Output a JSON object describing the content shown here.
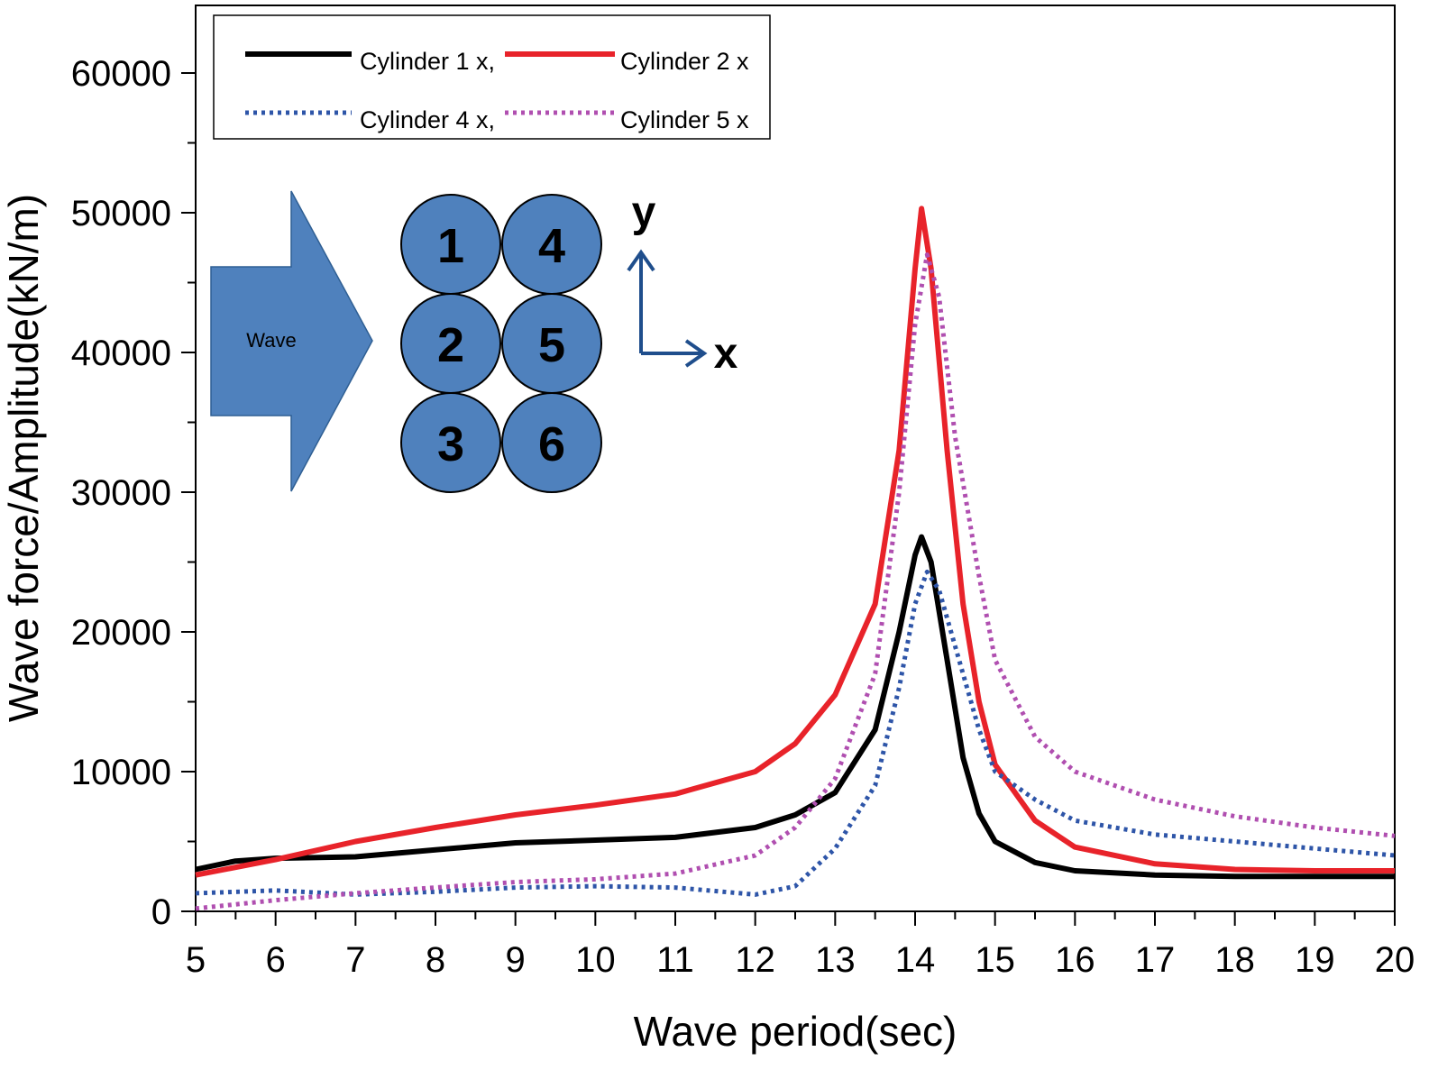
{
  "chart_data": {
    "type": "line",
    "xlabel": "Wave period(sec)",
    "ylabel": "Wave force/Amplitude(kN/m)",
    "xlim": [
      5,
      20
    ],
    "ylim": [
      0,
      65000
    ],
    "x_ticks": [
      5,
      6,
      7,
      8,
      9,
      10,
      11,
      12,
      13,
      14,
      15,
      16,
      17,
      18,
      19,
      20
    ],
    "y_ticks": [
      0,
      10000,
      20000,
      30000,
      40000,
      50000,
      60000
    ],
    "grid": false,
    "legend_position": "top-left",
    "series": [
      {
        "name": "Cylinder 1 x,",
        "color": "#000000",
        "style": "solid",
        "points": [
          [
            5,
            3000
          ],
          [
            5.5,
            3600
          ],
          [
            6,
            3800
          ],
          [
            7,
            3900
          ],
          [
            8,
            4400
          ],
          [
            9,
            4900
          ],
          [
            10,
            5100
          ],
          [
            11,
            5300
          ],
          [
            12,
            6000
          ],
          [
            12.5,
            6900
          ],
          [
            13,
            8500
          ],
          [
            13.5,
            13000
          ],
          [
            13.8,
            20000
          ],
          [
            14,
            25500
          ],
          [
            14.08,
            26800
          ],
          [
            14.2,
            25000
          ],
          [
            14.4,
            18000
          ],
          [
            14.6,
            11000
          ],
          [
            14.8,
            7000
          ],
          [
            15,
            5000
          ],
          [
            15.5,
            3500
          ],
          [
            16,
            2900
          ],
          [
            17,
            2600
          ],
          [
            18,
            2500
          ],
          [
            20,
            2500
          ]
        ]
      },
      {
        "name": "Cylinder 2 x",
        "color": "#e8232a",
        "style": "solid",
        "points": [
          [
            5,
            2600
          ],
          [
            6,
            3700
          ],
          [
            7,
            5000
          ],
          [
            8,
            6000
          ],
          [
            9,
            6900
          ],
          [
            10,
            7600
          ],
          [
            11,
            8400
          ],
          [
            12,
            10000
          ],
          [
            12.5,
            12000
          ],
          [
            13,
            15500
          ],
          [
            13.5,
            22000
          ],
          [
            13.8,
            33000
          ],
          [
            14,
            46000
          ],
          [
            14.08,
            50300
          ],
          [
            14.2,
            46000
          ],
          [
            14.4,
            33000
          ],
          [
            14.6,
            22000
          ],
          [
            14.8,
            15000
          ],
          [
            15,
            10500
          ],
          [
            15.5,
            6500
          ],
          [
            16,
            4600
          ],
          [
            17,
            3400
          ],
          [
            18,
            3000
          ],
          [
            19,
            2900
          ],
          [
            20,
            2900
          ]
        ]
      },
      {
        "name": "Cylinder 4 x,",
        "color": "#2e55a8",
        "style": "dotted",
        "points": [
          [
            5,
            1300
          ],
          [
            6,
            1500
          ],
          [
            7,
            1200
          ],
          [
            8,
            1400
          ],
          [
            9,
            1700
          ],
          [
            10,
            1800
          ],
          [
            11,
            1700
          ],
          [
            12,
            1200
          ],
          [
            12.5,
            1800
          ],
          [
            13,
            4500
          ],
          [
            13.5,
            9000
          ],
          [
            13.8,
            16000
          ],
          [
            14,
            22000
          ],
          [
            14.15,
            24300
          ],
          [
            14.3,
            23000
          ],
          [
            14.5,
            19000
          ],
          [
            14.8,
            13000
          ],
          [
            15,
            10000
          ],
          [
            15.5,
            8000
          ],
          [
            16,
            6500
          ],
          [
            17,
            5500
          ],
          [
            18,
            5000
          ],
          [
            19,
            4500
          ],
          [
            20,
            4000
          ]
        ]
      },
      {
        "name": "Cylinder 5 x",
        "color": "#b04fb0",
        "style": "dotted",
        "points": [
          [
            5,
            200
          ],
          [
            6,
            800
          ],
          [
            7,
            1300
          ],
          [
            8,
            1700
          ],
          [
            9,
            2100
          ],
          [
            10,
            2300
          ],
          [
            11,
            2700
          ],
          [
            12,
            4000
          ],
          [
            12.5,
            6000
          ],
          [
            13,
            9500
          ],
          [
            13.5,
            17000
          ],
          [
            13.8,
            30000
          ],
          [
            14,
            42000
          ],
          [
            14.15,
            47000
          ],
          [
            14.3,
            44000
          ],
          [
            14.5,
            34000
          ],
          [
            14.8,
            24000
          ],
          [
            15,
            18000
          ],
          [
            15.5,
            12500
          ],
          [
            16,
            10000
          ],
          [
            17,
            8000
          ],
          [
            18,
            6800
          ],
          [
            19,
            6000
          ],
          [
            20,
            5400
          ]
        ]
      }
    ],
    "inset": {
      "arrow_label": "Wave",
      "cylinders": [
        "1",
        "4",
        "2",
        "5",
        "3",
        "6"
      ],
      "axis_y_label": "y",
      "axis_x_label": "x",
      "cylinder_color": "#4f81bd",
      "arrow_color": "#4f81bd",
      "axis_color": "#1f4e8c"
    }
  }
}
